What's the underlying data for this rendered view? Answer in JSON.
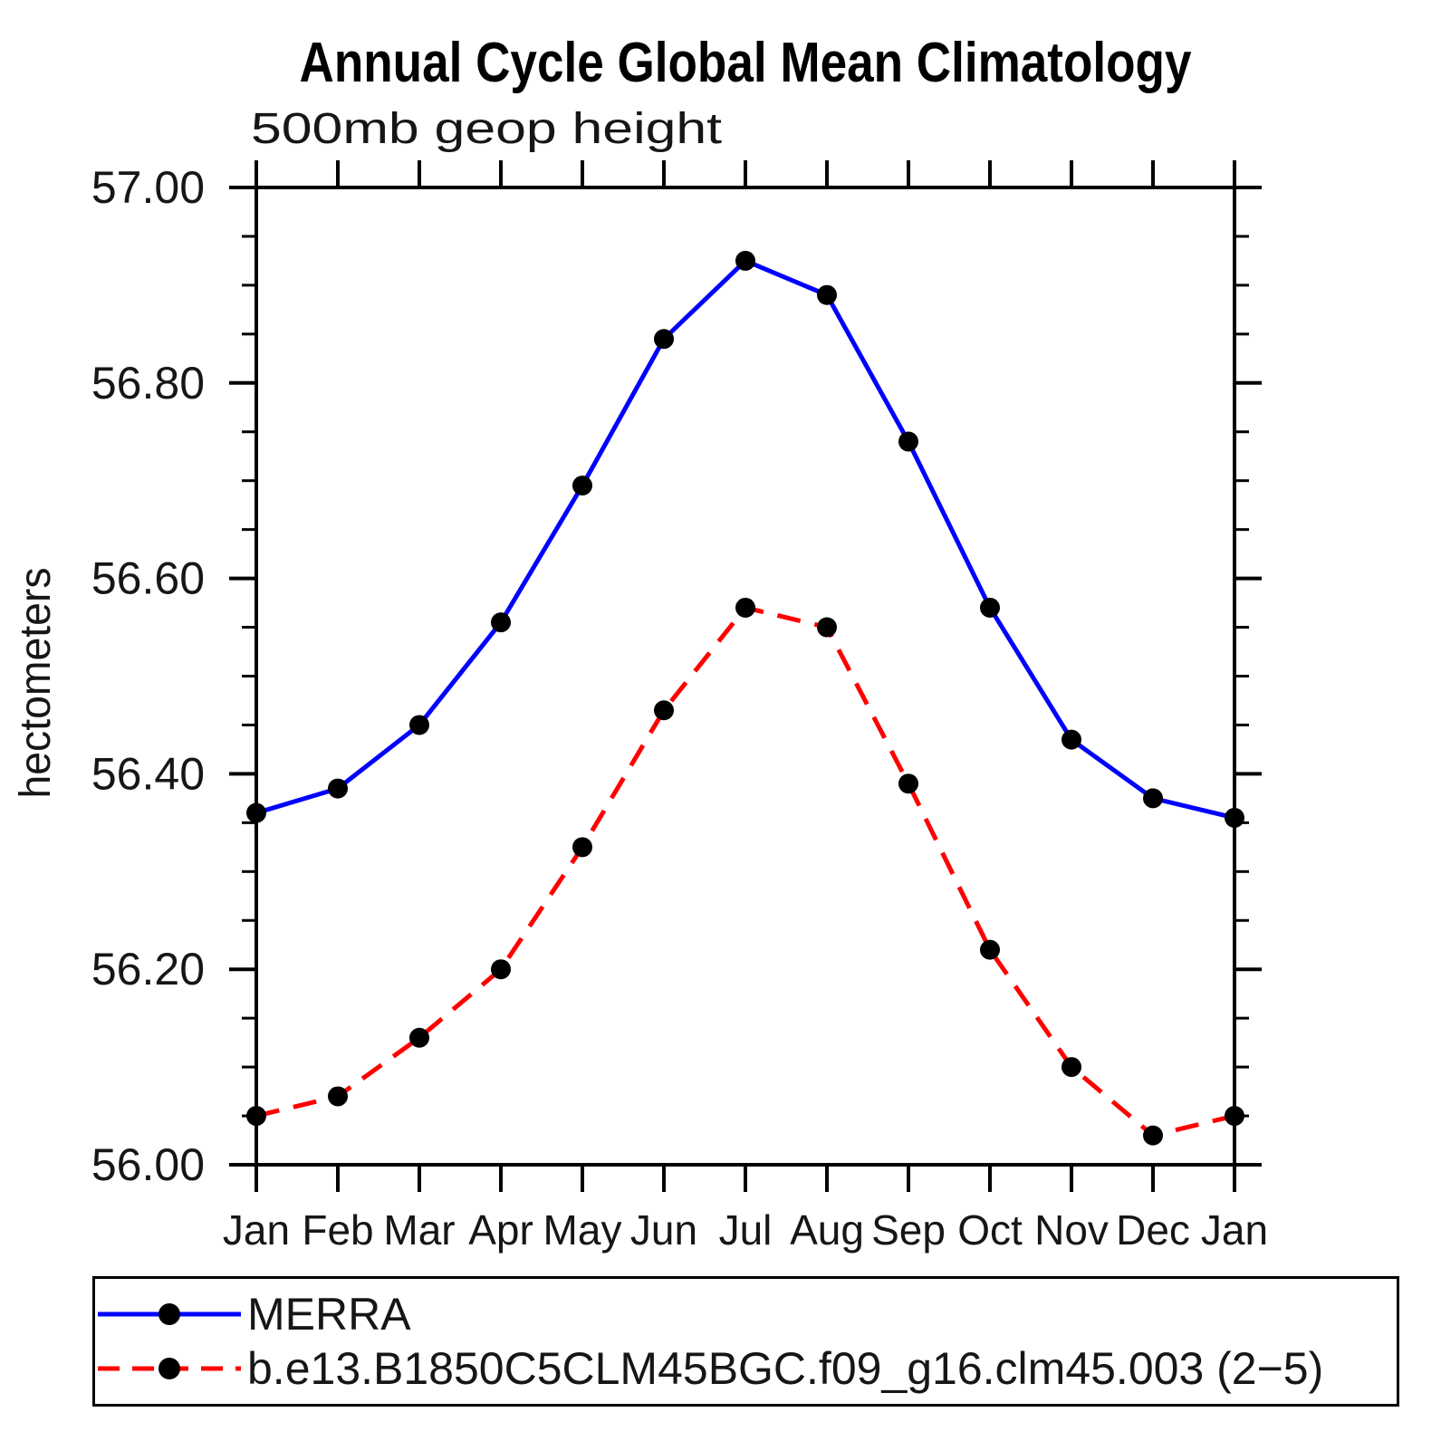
{
  "title": "Annual Cycle Global Mean Climatology",
  "subtitle": "500mb geop height",
  "ylabel": "hectometers",
  "colors": {
    "merra_line": "#0000ff",
    "model_line": "#ff0000",
    "marker": "#000000",
    "axis": "#000000"
  },
  "legend": {
    "items": [
      {
        "label": "MERRA",
        "color": "#0000ff",
        "style": "solid",
        "marker": "circle"
      },
      {
        "label": "b.e13.B1850C5CLM45BGC.f09_g16.clm45.003 (2−5)",
        "color": "#ff0000",
        "style": "dashed",
        "marker": "circle"
      }
    ]
  },
  "chart_data": {
    "type": "line",
    "title": "Annual Cycle Global Mean Climatology",
    "subtitle": "500mb geop height",
    "xlabel": "",
    "ylabel": "hectometers",
    "categories": [
      "Jan",
      "Feb",
      "Mar",
      "Apr",
      "May",
      "Jun",
      "Jul",
      "Aug",
      "Sep",
      "Oct",
      "Nov",
      "Dec",
      "Jan"
    ],
    "ylim": [
      56.0,
      57.0
    ],
    "ytick_major": [
      56.0,
      56.2,
      56.4,
      56.6,
      56.8,
      57.0
    ],
    "ytick_labels": [
      "56.00",
      "56.20",
      "56.40",
      "56.60",
      "56.80",
      "57.00"
    ],
    "ytick_minor_step": 0.05,
    "grid": false,
    "legend_position": "bottom",
    "series": [
      {
        "name": "MERRA",
        "color": "#0000ff",
        "line": "solid",
        "marker": "circle",
        "marker_color": "#000000",
        "values": [
          56.36,
          56.385,
          56.45,
          56.555,
          56.695,
          56.845,
          56.925,
          56.89,
          56.74,
          56.57,
          56.435,
          56.375,
          56.355
        ]
      },
      {
        "name": "b.e13.B1850C5CLM45BGC.f09_g16.clm45.003 (2−5)",
        "color": "#ff0000",
        "line": "dashed",
        "marker": "circle",
        "marker_color": "#000000",
        "values": [
          56.05,
          56.07,
          56.13,
          56.2,
          56.325,
          56.465,
          56.57,
          56.55,
          56.39,
          56.22,
          56.1,
          56.03,
          56.05
        ]
      }
    ]
  }
}
